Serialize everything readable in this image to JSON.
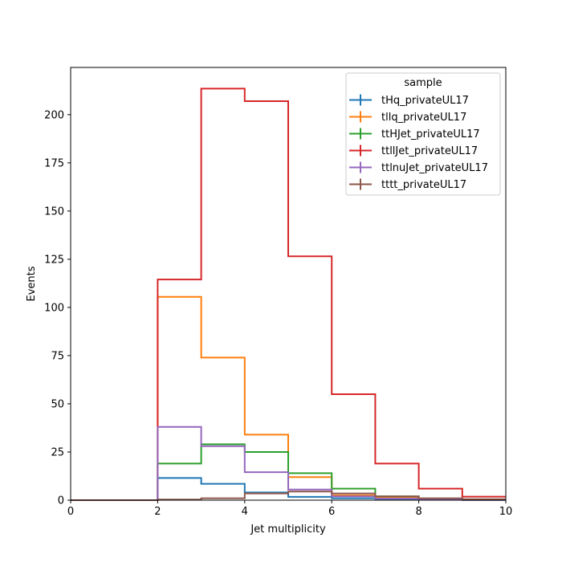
{
  "chart_data": {
    "type": "histogram-step",
    "xlabel": "Jet multiplicity",
    "ylabel": "Events",
    "xlim": [
      0,
      10
    ],
    "ylim": [
      0,
      224.5
    ],
    "xticks": [
      0,
      2,
      4,
      6,
      8,
      10
    ],
    "yticks": [
      0,
      25,
      50,
      75,
      100,
      125,
      150,
      175,
      200
    ],
    "bin_edges": [
      0,
      1,
      2,
      3,
      4,
      5,
      6,
      7,
      8,
      9,
      10
    ],
    "legend": {
      "title": "sample",
      "position": "top-right"
    },
    "series": [
      {
        "name": "tHq_privateUL17",
        "color": "#1f77b4",
        "values": [
          0,
          0,
          11.5,
          8.5,
          4.0,
          1.7,
          1.0,
          0.5,
          0.2,
          0.1
        ]
      },
      {
        "name": "tllq_privateUL17",
        "color": "#ff7f0e",
        "values": [
          0,
          0,
          105.5,
          74.0,
          34.0,
          12.0,
          2.5,
          1.5,
          0.5,
          0.2
        ]
      },
      {
        "name": "ttHJet_privateUL17",
        "color": "#2ca02c",
        "values": [
          0,
          0,
          19.0,
          29.0,
          25.0,
          14.0,
          6.0,
          2.0,
          0.8,
          0.3
        ]
      },
      {
        "name": "ttllJet_privateUL17",
        "color": "#d62728",
        "values": [
          0,
          0,
          114.5,
          213.5,
          207.0,
          126.5,
          55.0,
          19.0,
          6.0,
          1.8
        ]
      },
      {
        "name": "ttlnuJet_privateUL17",
        "color": "#9467bd",
        "values": [
          0,
          0,
          38.0,
          28.0,
          14.5,
          5.5,
          2.0,
          0.8,
          0.3,
          0.1
        ]
      },
      {
        "name": "tttt_privateUL17",
        "color": "#8c564b",
        "values": [
          0,
          0,
          0.3,
          1.0,
          3.5,
          4.5,
          3.5,
          2.0,
          1.0,
          0.5
        ]
      }
    ]
  }
}
